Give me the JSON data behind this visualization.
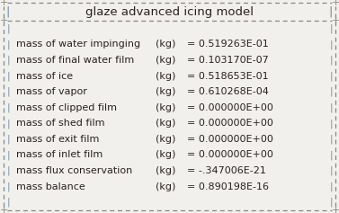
{
  "title": "glaze advanced icing model",
  "bg_color": "#f2f0ed",
  "border_color": "#8b8680",
  "text_color": "#2a2020",
  "pipe_color": "#7090b0",
  "font_family": "Courier New",
  "title_fontsize": 9.5,
  "body_fontsize": 8.0,
  "rows": [
    {
      "label": "mass of water impinging ",
      "unit": "(kg)",
      "value": "= 0.519263E-01"
    },
    {
      "label": "mass of final water film",
      "unit": "(kg)",
      "value": "= 0.103170E-07"
    },
    {
      "label": "mass of ice             ",
      "unit": "(kg)",
      "value": "= 0.518653E-01"
    },
    {
      "label": "mass of vapor           ",
      "unit": "(kg)",
      "value": "= 0.610268E-04"
    },
    {
      "label": "mass of clipped film    ",
      "unit": "(kg)",
      "value": "= 0.000000E+00"
    },
    {
      "label": "mass of shed film       ",
      "unit": "(kg)",
      "value": "= 0.000000E+00"
    },
    {
      "label": "mass of exit film       ",
      "unit": "(kg)",
      "value": "= 0.000000E+00"
    },
    {
      "label": "mass of inlet film      ",
      "unit": "(kg)",
      "value": "= 0.000000E+00"
    },
    {
      "label": "mass flux conservation  ",
      "unit": "(kg)",
      "value": "= -.347006E-21"
    },
    {
      "label": "mass balance            ",
      "unit": "(kg)",
      "value": "= 0.890198E-16"
    }
  ],
  "figsize": [
    3.77,
    2.37
  ],
  "dpi": 100
}
